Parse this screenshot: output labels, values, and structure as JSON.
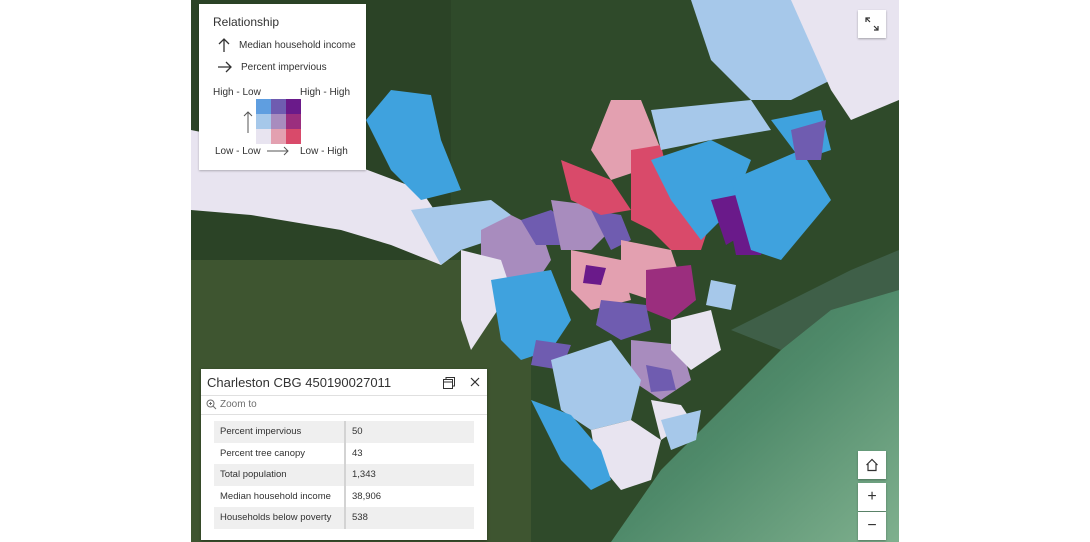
{
  "legend": {
    "title": "Relationship",
    "vertical_field": "Median household income",
    "horizontal_field": "Percent impervious",
    "top_left": "High - Low",
    "top_right": "High - High",
    "bottom_left": "Low - Low",
    "bottom_right": "Low - High",
    "colors": [
      "#5f9ee0",
      "#6f5cb0",
      "#6a1a8a",
      "#a6c8ea",
      "#a88cbe",
      "#9b2e7e",
      "#e8e4f0",
      "#e3a0b0",
      "#d94a6a"
    ]
  },
  "popup": {
    "title": "Charleston CBG 450190027011",
    "zoom_label": "Zoom to",
    "rows": [
      {
        "label": "Percent impervious",
        "value": "50"
      },
      {
        "label": "Percent tree canopy",
        "value": "43"
      },
      {
        "label": "Total population",
        "value": "1,343"
      },
      {
        "label": "Median household income",
        "value": "38,906"
      },
      {
        "label": "Households below poverty",
        "value": "538"
      }
    ]
  },
  "controls": {
    "expand_icon": "expand-icon",
    "home_icon": "home-icon",
    "zoom_in_label": "+",
    "zoom_out_label": "−"
  }
}
